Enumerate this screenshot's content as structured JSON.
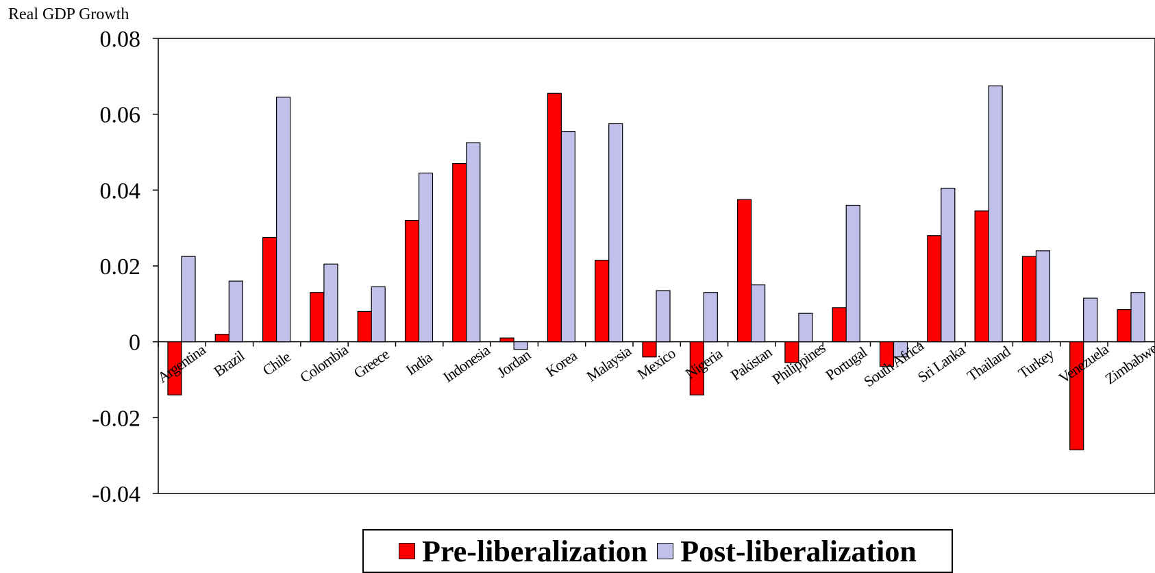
{
  "chart_data": {
    "type": "bar",
    "ylabel": "Real GDP Growth",
    "ylim": [
      -0.04,
      0.08
    ],
    "yticks": [
      "0.08",
      "0.06",
      "0.04",
      "0.02",
      "0",
      "-0.02",
      "-0.04"
    ],
    "ytick_values": [
      0.08,
      0.06,
      0.04,
      0.02,
      0,
      -0.02,
      -0.04
    ],
    "categories": [
      "Argentina",
      "Brazil",
      "Chile",
      "Colombia",
      "Greece",
      "India",
      "Indonesia",
      "Jordan",
      "Korea",
      "Malaysia",
      "Mexico",
      "Nigeria",
      "Pakistan",
      "Philippines",
      "Portugal",
      "South Africa",
      "Sri Lanka",
      "Thailand",
      "Turkey",
      "Venezuela",
      "Zimbabwe"
    ],
    "series": [
      {
        "name": "Pre-liberalization",
        "color": "#ff0000",
        "values": [
          -0.014,
          0.002,
          0.0275,
          0.013,
          0.008,
          0.032,
          0.047,
          0.001,
          0.0655,
          0.0215,
          -0.004,
          -0.014,
          0.0375,
          -0.0055,
          0.009,
          -0.0065,
          0.028,
          0.0345,
          0.0225,
          -0.0285,
          0.0085
        ]
      },
      {
        "name": "Post-liberalization",
        "color": "#c0c0ea",
        "values": [
          0.0225,
          0.016,
          0.0645,
          0.0205,
          0.0145,
          0.0445,
          0.0525,
          -0.002,
          0.0555,
          0.0575,
          0.0135,
          0.013,
          0.015,
          0.0075,
          0.036,
          -0.004,
          0.0405,
          0.0675,
          0.024,
          0.0115,
          0.013
        ]
      }
    ],
    "grid": false,
    "legend": "bottom"
  }
}
